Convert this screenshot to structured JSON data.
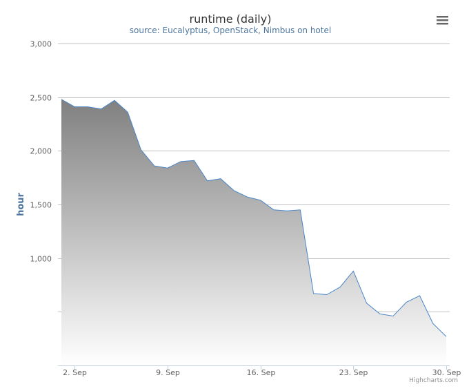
{
  "chart_data": {
    "type": "area",
    "title": "runtime (daily)",
    "subtitle": "source: Eucalyptus, OpenStack, Nimbus on hotel",
    "ylabel": "hour",
    "ylim": [
      0,
      3000
    ],
    "y_ticks": [
      {
        "value": 3000,
        "label": "3,000"
      },
      {
        "value": 2500,
        "label": "2,500"
      },
      {
        "value": 2000,
        "label": "2,000"
      },
      {
        "value": 1500,
        "label": "1,500"
      },
      {
        "value": 1000,
        "label": "1,000"
      },
      {
        "value": 500,
        "label": ""
      }
    ],
    "x_range": [
      "2014-09-01",
      "2014-09-30"
    ],
    "x_ticks": [
      {
        "date": "2014-09-02",
        "label": "2. Sep"
      },
      {
        "date": "2014-09-09",
        "label": "9. Sep"
      },
      {
        "date": "2014-09-16",
        "label": "16. Sep"
      },
      {
        "date": "2014-09-23",
        "label": "23. Sep"
      },
      {
        "date": "2014-09-30",
        "label": "30. Sep"
      }
    ],
    "x": [
      "2014-09-01",
      "2014-09-02",
      "2014-09-03",
      "2014-09-04",
      "2014-09-05",
      "2014-09-06",
      "2014-09-07",
      "2014-09-08",
      "2014-09-09",
      "2014-09-10",
      "2014-09-11",
      "2014-09-12",
      "2014-09-13",
      "2014-09-14",
      "2014-09-15",
      "2014-09-16",
      "2014-09-17",
      "2014-09-18",
      "2014-09-19",
      "2014-09-20",
      "2014-09-21",
      "2014-09-22",
      "2014-09-23",
      "2014-09-24",
      "2014-09-25",
      "2014-09-26",
      "2014-09-27",
      "2014-09-28",
      "2014-09-29",
      "2014-09-30"
    ],
    "values": [
      2480,
      2410,
      2410,
      2390,
      2470,
      2360,
      2010,
      1860,
      1840,
      1900,
      1910,
      1720,
      1740,
      1630,
      1570,
      1540,
      1450,
      1440,
      1450,
      670,
      660,
      730,
      880,
      580,
      480,
      460,
      590,
      650,
      390,
      270
    ],
    "grid": true,
    "legend": "none",
    "fill_gradient": [
      "#808080",
      "#ffffff"
    ],
    "line_color": "#4a86c8"
  },
  "credits": "Highcharts.com",
  "menu_icon": "hamburger-menu-icon"
}
